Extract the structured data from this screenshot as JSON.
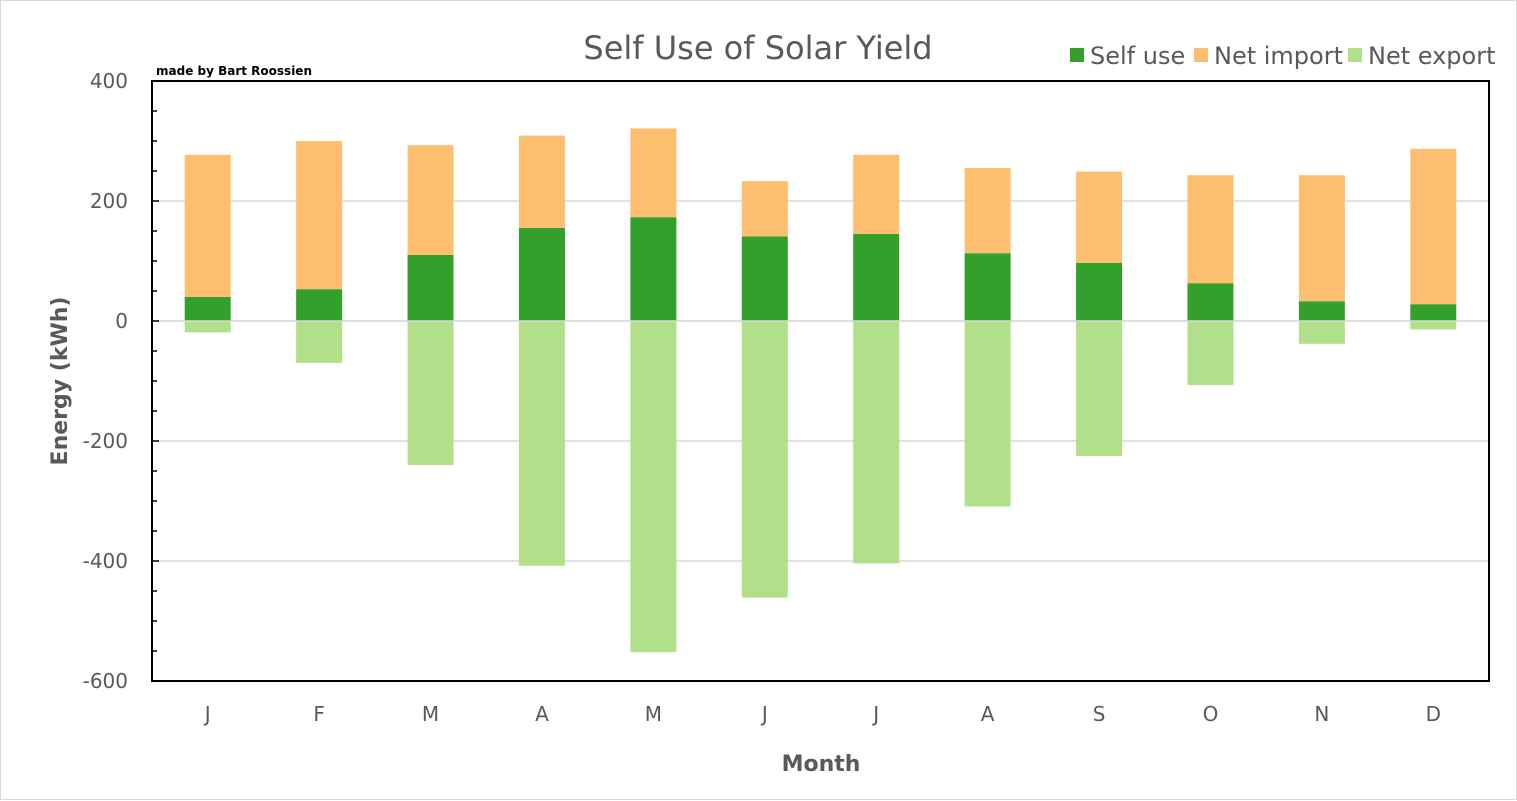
{
  "chart_data": {
    "type": "bar",
    "title": "Self Use of Solar Yield",
    "credit": "made by Bart Roossien",
    "xlabel": "Month",
    "ylabel": "Energy (kWh)",
    "ylim": [
      -600,
      400
    ],
    "yticks": [
      "400",
      "200",
      "0",
      "-200",
      "-400",
      "-600"
    ],
    "ytick_values": [
      400,
      200,
      0,
      -200,
      -400,
      -600
    ],
    "categories": [
      "J",
      "F",
      "M",
      "A",
      "M",
      "J",
      "J",
      "A",
      "S",
      "O",
      "N",
      "D"
    ],
    "stacked": true,
    "grid": true,
    "legend_position": "top-right",
    "series": [
      {
        "name": "Self use",
        "color": "#33a02c",
        "values": [
          40,
          53,
          110,
          155,
          173,
          141,
          145,
          113,
          97,
          63,
          33,
          28
        ]
      },
      {
        "name": "Net import",
        "color": "#fdbf6f",
        "values": [
          237,
          247,
          183,
          154,
          148,
          92,
          132,
          142,
          152,
          180,
          210,
          259
        ]
      },
      {
        "name": "Net export",
        "color": "#b2df8a",
        "values": [
          -19,
          -70,
          -240,
          -408,
          -552,
          -461,
          -404,
          -309,
          -225,
          -107,
          -38,
          -14
        ]
      }
    ]
  }
}
